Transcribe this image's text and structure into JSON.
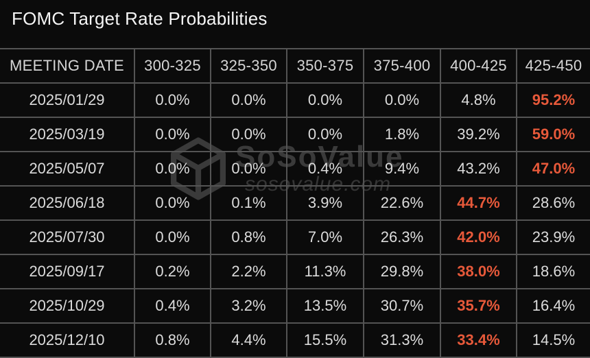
{
  "title": "FOMC Target Rate Probabilities",
  "watermark": {
    "brand": "SoSoValue",
    "domain": "sosovalue.com"
  },
  "colors": {
    "background": "#0B0B0B",
    "border": "#545454",
    "text": "#DCDCDC",
    "header_text": "#D6D6D6",
    "title_text": "#F5F5F5",
    "highlight": "#E7593A",
    "watermark": "#3A3A3A"
  },
  "chart_data": {
    "type": "table",
    "title": "FOMC Target Rate Probabilities",
    "columns": [
      "MEETING DATE",
      "300-325",
      "325-350",
      "350-375",
      "375-400",
      "400-425",
      "425-450"
    ],
    "rows": [
      {
        "date": "2025/01/29",
        "values": [
          "0.0%",
          "0.0%",
          "0.0%",
          "0.0%",
          "4.8%",
          "95.2%"
        ],
        "highlight_index": 5
      },
      {
        "date": "2025/03/19",
        "values": [
          "0.0%",
          "0.0%",
          "0.0%",
          "1.8%",
          "39.2%",
          "59.0%"
        ],
        "highlight_index": 5
      },
      {
        "date": "2025/05/07",
        "values": [
          "0.0%",
          "0.0%",
          "0.4%",
          "9.4%",
          "43.2%",
          "47.0%"
        ],
        "highlight_index": 5
      },
      {
        "date": "2025/06/18",
        "values": [
          "0.0%",
          "0.1%",
          "3.9%",
          "22.6%",
          "44.7%",
          "28.6%"
        ],
        "highlight_index": 4
      },
      {
        "date": "2025/07/30",
        "values": [
          "0.0%",
          "0.8%",
          "7.0%",
          "26.3%",
          "42.0%",
          "23.9%"
        ],
        "highlight_index": 4
      },
      {
        "date": "2025/09/17",
        "values": [
          "0.2%",
          "2.2%",
          "11.3%",
          "29.8%",
          "38.0%",
          "18.6%"
        ],
        "highlight_index": 4
      },
      {
        "date": "2025/10/29",
        "values": [
          "0.4%",
          "3.2%",
          "13.5%",
          "30.7%",
          "35.7%",
          "16.4%"
        ],
        "highlight_index": 4
      },
      {
        "date": "2025/12/10",
        "values": [
          "0.8%",
          "4.4%",
          "15.5%",
          "31.3%",
          "33.4%",
          "14.5%"
        ],
        "highlight_index": 4
      }
    ]
  }
}
